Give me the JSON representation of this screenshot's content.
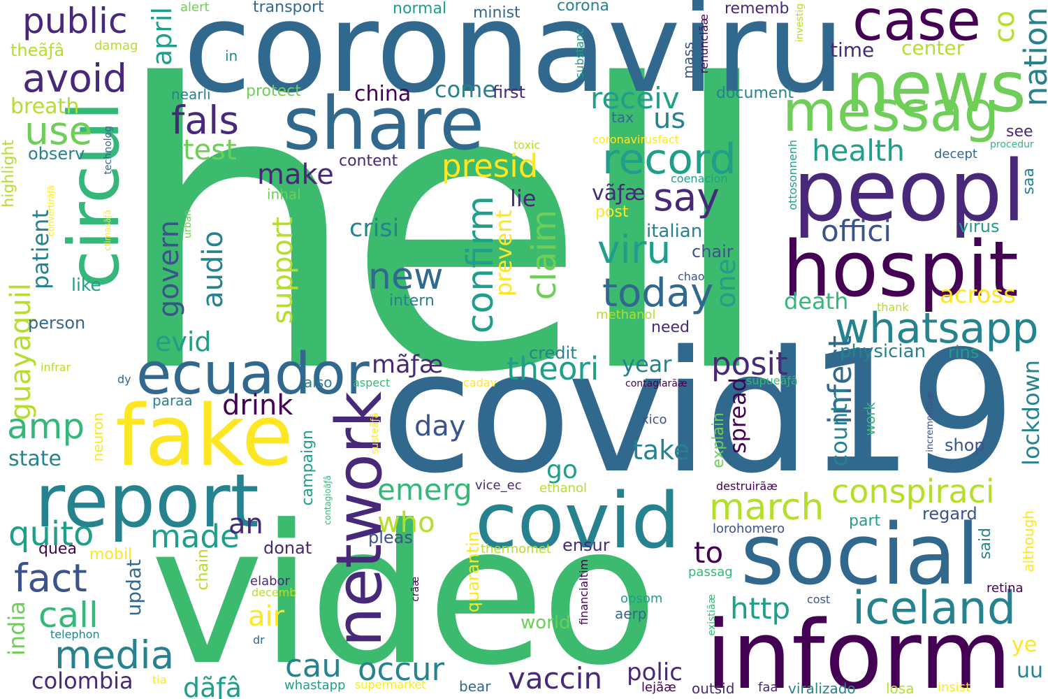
{
  "words": {
    "hell": "hell",
    "coronaviru": "coronaviru",
    "covid19": "covid19",
    "video": "video",
    "inform": "inform",
    "social": "social",
    "fake": "fake",
    "report": "report",
    "covid": "covid",
    "share": "share",
    "peopl": "peopl",
    "hospit": "hospit",
    "news": "news",
    "messag": "messag",
    "case": "case",
    "circul": "circul",
    "network": "network",
    "ecuador": "ecuador",
    "whatsapp": "whatsapp",
    "iceland": "iceland",
    "record": "record",
    "public": "public",
    "avoid": "avoid",
    "use": "use",
    "amp": "amp",
    "fals": "fals",
    "today": "today",
    "viru": "viru",
    "say": "say",
    "confirm": "confirm",
    "presid": "presid",
    "march": "march",
    "conspiraci": "conspiraci",
    "vaccin": "vaccin",
    "media": "media",
    "fact": "fact",
    "quito": "quito",
    "call": "call",
    "made": "made",
    "posit": "posit",
    "theori": "theori",
    "occur": "occur",
    "cau": "cau",
    "drink": "drink",
    "new": "new",
    "claim": "claim",
    "test": "test",
    "make": "make",
    "receiv": "receiv",
    "offici": "offici",
    "health": "health",
    "nation": "nation",
    "infect": "infect",
    "emerg": "emerg",
    "who": "who",
    "air": "air",
    "http": "http",
    "day": "day",
    "an": "an",
    "to": "to",
    "go": "go",
    "take": "take",
    "polic": "polic",
    "colombia": "colombia",
    "april": "april",
    "govern": "govern",
    "audio": "audio",
    "support": "support",
    "evid": "evid",
    "crisi": "crisi",
    "one": "one",
    "year": "year",
    "spread": "spread",
    "countri": "countri",
    "lockdown": "lockdown",
    "death": "death",
    "across": "across",
    "physician": "physician",
    "guayaquil": "guayaquil",
    "patient": "patient",
    "india": "india",
    "state": "state",
    "person": "person",
    "like": "like",
    "breath": "breath",
    "observ": "observ",
    "highlight": "highlight",
    "china": "china",
    "come": "come",
    "first": "first",
    "us": "us",
    "time": "time",
    "center": "center",
    "co": "co",
    "lie": "lie",
    "prevent": "prevent",
    "italian": "italian",
    "chair": "chair",
    "chao": "chao",
    "post": "post",
    "content": "content",
    "intern": "intern",
    "credit": "credit",
    "also": "also",
    "need": "need",
    "methanol": "methanol",
    "thank": "thank",
    "rins": "rins",
    "saa": "saa",
    "virus": "virus",
    "see": "see",
    "decept": "decept",
    "procedur": "procedur",
    "document": "document",
    "tax": "tax",
    "toxic": "toxic",
    "coronavirusfact": "coronavirusfact",
    "coenacion": "coenacion",
    "ottosonnenh": "ottosonnenh",
    "protect": "protect",
    "nearli": "nearli",
    "in": "in",
    "mass": "mass",
    "substanc": "substanc",
    "renuncia": "renunciãæ",
    "investig": "investig",
    "rememb": "rememb",
    "transport": "transport",
    "normal": "normal",
    "minist": "minist",
    "corona": "corona",
    "alert": "alert",
    "damag": "damag",
    "thea": "theãƒâ",
    "inhal": "inhal",
    "technolog": "technolog",
    "urban": "urban",
    "converti": "convertirãƒâ",
    "ctimasa": "ctimasãƒâ",
    "dy": "dy",
    "infrar": "infrar",
    "aspect": "aspect",
    "cadav": "cadav",
    "paraa": "paraa",
    "neuron": "neuron",
    "mobil": "mobil",
    "quea": "quea",
    "updat": "updat",
    "elabor": "elabor",
    "decemb": "decemb",
    "cra": "crãæ",
    "telephon": "telephon",
    "dr": "dr",
    "tia": "tia",
    "whastapp": "whastapp",
    "supermarket": "supermarket",
    "bear": "bear",
    "faa": "faa",
    "viralizado": "viralizado",
    "losa": "losa",
    "insist": "insist",
    "uu": "uu",
    "ye": "ye",
    "outsid": "outsid",
    "leja": "lejãæ",
    "financialtim": "financialtim",
    "existia": "existiãæ",
    "aerp": "aerp",
    "opsom": "opsom",
    "cost": "cost",
    "retina": "retina",
    "passag": "passag",
    "although": "although",
    "said": "said",
    "regard": "regard",
    "part": "part",
    "lorohomero": "lorohomero",
    "destruira": "destruirãæ",
    "shop": "shop",
    "work": "work",
    "incrementa": "incrementãæ",
    "supuea": "supueãƒâ",
    "contagiara": "contagiarãæ",
    "xico": "xico",
    "explain": "explain",
    "ensur": "ensur",
    "vice_ec": "vice_ec",
    "ethanol": "ethanol",
    "thermomet": "thermomet",
    "quarantin": "quarantin",
    "world": "world",
    "chain": "chain",
    "campaign": "campaign",
    "contagioa": "contagioãƒâ",
    "sustea": "susteãƒâ",
    "donat": "donat",
    "pleas": "pleas",
    "maa": "mãƒæ",
    "vaa": "vãƒæ",
    "daa": "dãƒâ"
  }
}
